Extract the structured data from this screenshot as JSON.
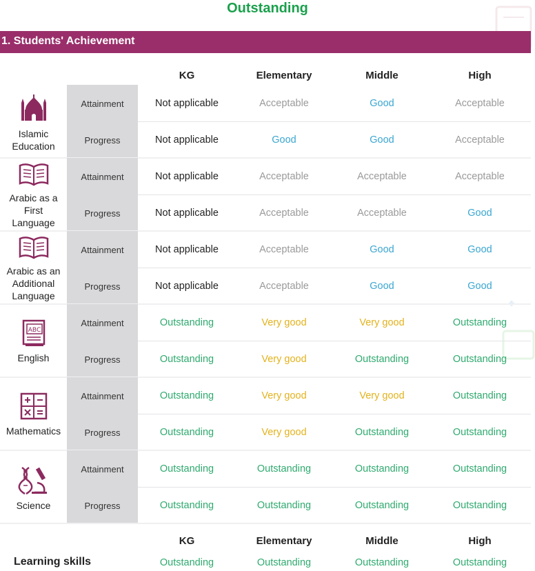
{
  "page_title": "Outstanding",
  "section": {
    "title": "1. Students' Achievement"
  },
  "columns": [
    "KG",
    "Elementary",
    "Middle",
    "High"
  ],
  "row_labels": {
    "attainment": "Attainment",
    "progress": "Progress"
  },
  "colors": {
    "section_bar": "#9a2e6a",
    "icon": "#8c2a5f",
    "title_green": "#1aa04c",
    "not_applicable": "#222222",
    "acceptable": "#9a9a9a",
    "good": "#3aa6d1",
    "very_good": "#e3b21c",
    "outstanding": "#2faa6e"
  },
  "subjects": [
    {
      "name": "Islamic\nEducation",
      "icon": "mosque-icon",
      "attainment": [
        "Not applicable",
        "Acceptable",
        "Good",
        "Acceptable"
      ],
      "progress": [
        "Not applicable",
        "Good",
        "Good",
        "Acceptable"
      ]
    },
    {
      "name": "Arabic as a\nFirst\nLanguage",
      "icon": "open-book-icon",
      "attainment": [
        "Not applicable",
        "Acceptable",
        "Acceptable",
        "Acceptable"
      ],
      "progress": [
        "Not applicable",
        "Acceptable",
        "Acceptable",
        "Good"
      ]
    },
    {
      "name": "Arabic as an\nAdditional\nLanguage",
      "icon": "open-book-icon",
      "attainment": [
        "Not applicable",
        "Acceptable",
        "Good",
        "Good"
      ],
      "progress": [
        "Not applicable",
        "Acceptable",
        "Good",
        "Good"
      ]
    },
    {
      "name": "English",
      "icon": "abc-book-icon",
      "attainment": [
        "Outstanding",
        "Very good",
        "Very good",
        "Outstanding"
      ],
      "progress": [
        "Outstanding",
        "Very good",
        "Outstanding",
        "Outstanding"
      ]
    },
    {
      "name": "Mathematics",
      "icon": "math-symbols-icon",
      "attainment": [
        "Outstanding",
        "Very good",
        "Very good",
        "Outstanding"
      ],
      "progress": [
        "Outstanding",
        "Very good",
        "Outstanding",
        "Outstanding"
      ]
    },
    {
      "name": "Science",
      "icon": "dna-microscope-icon",
      "attainment": [
        "Outstanding",
        "Outstanding",
        "Outstanding",
        "Outstanding"
      ],
      "progress": [
        "Outstanding",
        "Outstanding",
        "Outstanding",
        "Outstanding"
      ]
    }
  ],
  "learning_skills": {
    "label": "Learning skills",
    "columns": [
      "KG",
      "Elementary",
      "Middle",
      "High"
    ],
    "values": [
      "Outstanding",
      "Outstanding",
      "Outstanding",
      "Outstanding"
    ]
  }
}
